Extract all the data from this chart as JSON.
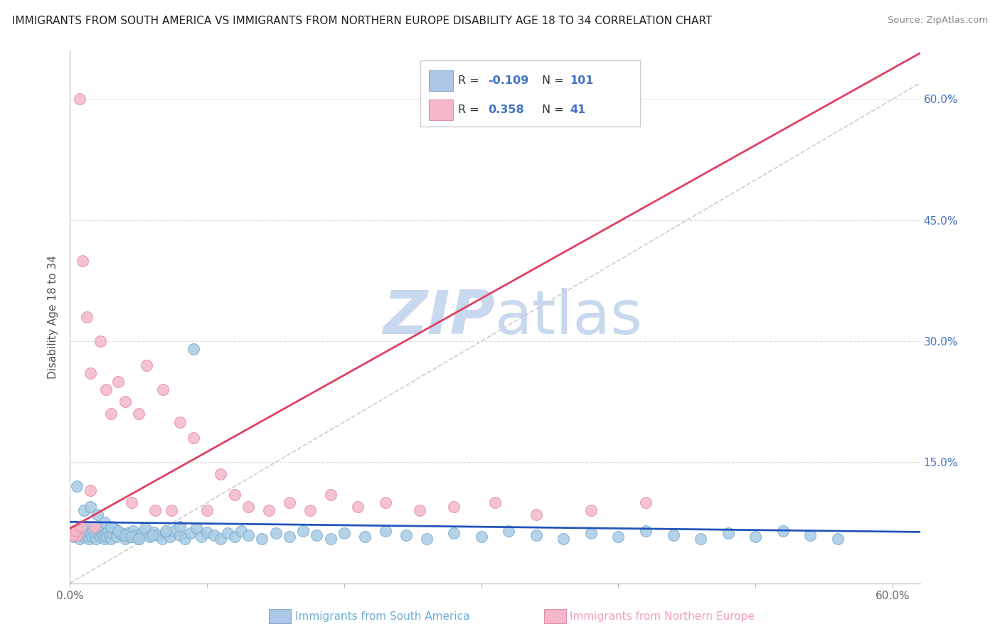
{
  "title": "IMMIGRANTS FROM SOUTH AMERICA VS IMMIGRANTS FROM NORTHERN EUROPE DISABILITY AGE 18 TO 34 CORRELATION CHART",
  "source": "Source: ZipAtlas.com",
  "ylabel": "Disability Age 18 to 34",
  "xlim": [
    0.0,
    0.62
  ],
  "ylim": [
    0.0,
    0.66
  ],
  "series1_color": "#a8cce4",
  "series1_edge": "#7aaed0",
  "series2_color": "#f4b8c8",
  "series2_edge": "#e890a8",
  "trend1_color": "#2255bb",
  "trend2_color": "#e04060",
  "diagonal_color": "#cccccc",
  "watermark_color": "#c8d8ee",
  "legend_color": "#4472c4",
  "bg_color": "#ffffff",
  "grid_color": "#dddddd",
  "sa_x": [
    0.002,
    0.003,
    0.004,
    0.005,
    0.006,
    0.007,
    0.008,
    0.009,
    0.01,
    0.011,
    0.012,
    0.013,
    0.014,
    0.015,
    0.016,
    0.017,
    0.018,
    0.019,
    0.02,
    0.021,
    0.022,
    0.023,
    0.024,
    0.025,
    0.026,
    0.027,
    0.028,
    0.029,
    0.03,
    0.031,
    0.032,
    0.034,
    0.036,
    0.038,
    0.04,
    0.042,
    0.044,
    0.046,
    0.048,
    0.05,
    0.052,
    0.055,
    0.058,
    0.061,
    0.064,
    0.067,
    0.07,
    0.073,
    0.076,
    0.08,
    0.084,
    0.088,
    0.092,
    0.096,
    0.1,
    0.105,
    0.11,
    0.115,
    0.12,
    0.125,
    0.13,
    0.14,
    0.15,
    0.16,
    0.17,
    0.18,
    0.19,
    0.2,
    0.215,
    0.23,
    0.245,
    0.26,
    0.28,
    0.3,
    0.32,
    0.34,
    0.36,
    0.38,
    0.4,
    0.42,
    0.44,
    0.46,
    0.48,
    0.5,
    0.52,
    0.54,
    0.56,
    0.005,
    0.01,
    0.015,
    0.02,
    0.025,
    0.03,
    0.035,
    0.04,
    0.045,
    0.05,
    0.06,
    0.07,
    0.08,
    0.09
  ],
  "sa_y": [
    0.06,
    0.058,
    0.065,
    0.063,
    0.06,
    0.055,
    0.062,
    0.068,
    0.058,
    0.065,
    0.06,
    0.07,
    0.055,
    0.062,
    0.058,
    0.065,
    0.06,
    0.055,
    0.062,
    0.068,
    0.058,
    0.063,
    0.06,
    0.055,
    0.062,
    0.058,
    0.065,
    0.06,
    0.055,
    0.062,
    0.068,
    0.058,
    0.063,
    0.06,
    0.055,
    0.062,
    0.058,
    0.065,
    0.06,
    0.055,
    0.062,
    0.068,
    0.058,
    0.063,
    0.06,
    0.055,
    0.062,
    0.058,
    0.065,
    0.06,
    0.055,
    0.062,
    0.068,
    0.058,
    0.063,
    0.06,
    0.055,
    0.062,
    0.058,
    0.065,
    0.06,
    0.055,
    0.062,
    0.058,
    0.065,
    0.06,
    0.055,
    0.062,
    0.058,
    0.065,
    0.06,
    0.055,
    0.062,
    0.058,
    0.065,
    0.06,
    0.055,
    0.062,
    0.058,
    0.065,
    0.06,
    0.055,
    0.062,
    0.058,
    0.065,
    0.06,
    0.055,
    0.12,
    0.09,
    0.095,
    0.085,
    0.075,
    0.07,
    0.065,
    0.06,
    0.058,
    0.055,
    0.06,
    0.065,
    0.07,
    0.29
  ],
  "ne_x": [
    0.001,
    0.003,
    0.005,
    0.007,
    0.009,
    0.012,
    0.015,
    0.018,
    0.022,
    0.026,
    0.03,
    0.035,
    0.04,
    0.045,
    0.05,
    0.056,
    0.062,
    0.068,
    0.074,
    0.08,
    0.09,
    0.1,
    0.11,
    0.12,
    0.13,
    0.145,
    0.16,
    0.175,
    0.19,
    0.21,
    0.23,
    0.255,
    0.28,
    0.31,
    0.34,
    0.38,
    0.42,
    0.002,
    0.004,
    0.008,
    0.015
  ],
  "ne_y": [
    0.062,
    0.065,
    0.06,
    0.6,
    0.4,
    0.33,
    0.26,
    0.07,
    0.3,
    0.24,
    0.21,
    0.25,
    0.225,
    0.1,
    0.21,
    0.27,
    0.09,
    0.24,
    0.09,
    0.2,
    0.18,
    0.09,
    0.135,
    0.11,
    0.095,
    0.09,
    0.1,
    0.09,
    0.11,
    0.095,
    0.1,
    0.09,
    0.095,
    0.1,
    0.085,
    0.09,
    0.1,
    0.06,
    0.065,
    0.07,
    0.115
  ]
}
